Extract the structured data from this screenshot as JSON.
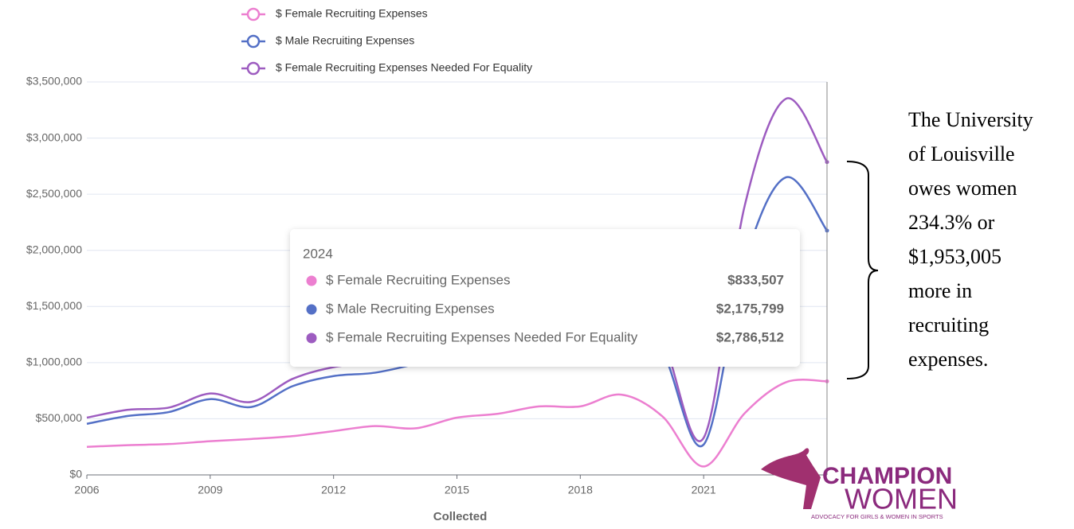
{
  "chart_data": {
    "type": "line",
    "x_label": "Collected",
    "x": [
      2006,
      2007,
      2008,
      2009,
      2010,
      2011,
      2012,
      2013,
      2014,
      2015,
      2016,
      2017,
      2018,
      2019,
      2020,
      2021,
      2022,
      2023,
      2024
    ],
    "xlim": [
      2006,
      2024
    ],
    "xticks": [
      2006,
      2009,
      2012,
      2015,
      2018,
      2021
    ],
    "ylim": [
      0,
      3500000
    ],
    "yticks": [
      {
        "value": 0,
        "label": "$0"
      },
      {
        "value": 500000,
        "label": "$500,000"
      },
      {
        "value": 1000000,
        "label": "$1,000,000"
      },
      {
        "value": 1500000,
        "label": "$1,500,000"
      },
      {
        "value": 2000000,
        "label": "$2,000,000"
      },
      {
        "value": 2500000,
        "label": "$2,500,000"
      },
      {
        "value": 3000000,
        "label": "$3,000,000"
      },
      {
        "value": 3500000,
        "label": "$3,500,000"
      }
    ],
    "grid": true,
    "series": [
      {
        "name": "$ Female Recruiting Expenses",
        "color": "#ec7fd0",
        "values": [
          250000,
          265000,
          275000,
          300000,
          320000,
          345000,
          390000,
          435000,
          415000,
          510000,
          545000,
          610000,
          610000,
          715000,
          520000,
          75000,
          550000,
          825000,
          833507
        ],
        "value_labels": [
          null,
          null,
          null,
          null,
          null,
          null,
          null,
          null,
          null,
          null,
          null,
          null,
          null,
          null,
          null,
          null,
          null,
          null,
          "$833,507"
        ]
      },
      {
        "name": "$ Male Recruiting Expenses",
        "color": "#5470c6",
        "values": [
          455000,
          525000,
          560000,
          675000,
          605000,
          790000,
          880000,
          910000,
          990000,
          1100000,
          1200000,
          1300000,
          1400000,
          1500000,
          1100000,
          270000,
          1900000,
          2650000,
          2175799
        ],
        "value_labels": [
          null,
          null,
          null,
          null,
          null,
          null,
          null,
          null,
          null,
          null,
          null,
          null,
          null,
          null,
          null,
          null,
          null,
          null,
          "$2,175,799"
        ]
      },
      {
        "name": "$ Female Recruiting Expenses Needed For Equality",
        "color": "#9d5cc0",
        "values": [
          510000,
          580000,
          600000,
          725000,
          650000,
          855000,
          960000,
          1000000,
          1050000,
          1200000,
          1300000,
          1400000,
          1500000,
          1620000,
          1200000,
          330000,
          2400000,
          3350000,
          2786512
        ],
        "value_labels": [
          null,
          null,
          null,
          null,
          null,
          null,
          null,
          null,
          null,
          null,
          null,
          null,
          null,
          null,
          null,
          null,
          null,
          null,
          "$2,786,512"
        ]
      }
    ],
    "annotation": [
      "The University",
      "of Louisville",
      "owes women",
      "234.3% or",
      "$1,953,005",
      "more in",
      "recruiting",
      "expenses."
    ],
    "logo": {
      "line1": "CHAMPION",
      "line2": "WOMEN",
      "tagline": "ADVOCACY FOR GIRLS & WOMEN IN SPORTS"
    }
  }
}
